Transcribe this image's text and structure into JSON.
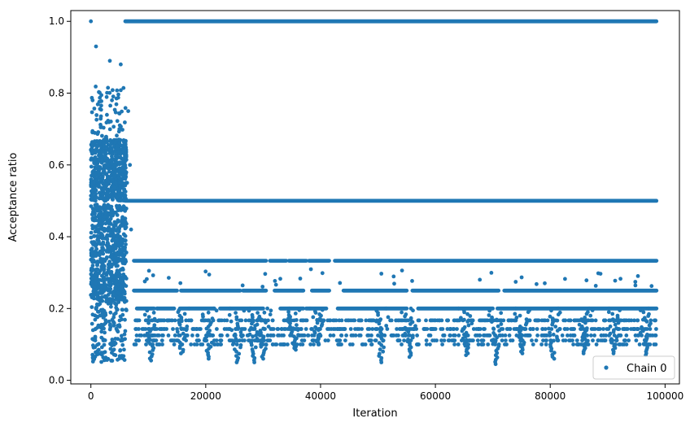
{
  "chart_data": {
    "type": "scatter",
    "title": "",
    "xlabel": "Iteration",
    "ylabel": "Acceptance ratio",
    "xlim": [
      -3500,
      102500
    ],
    "ylim": [
      -0.01,
      1.03
    ],
    "xticks": [
      0,
      20000,
      40000,
      60000,
      80000,
      100000
    ],
    "xtick_labels": [
      "0",
      "20000",
      "40000",
      "60000",
      "80000",
      "100000"
    ],
    "yticks": [
      0.0,
      0.2,
      0.4,
      0.6,
      0.8,
      1.0
    ],
    "ytick_labels": [
      "0.0",
      "0.2",
      "0.4",
      "0.6",
      "0.8",
      "1.0"
    ],
    "grid": false,
    "legend_position": "lower-right",
    "color": "#1f77b4",
    "series": [
      {
        "name": "Chain 0",
        "burn_in": {
          "x_range": [
            0,
            6200
          ],
          "y_range": [
            0.04,
            0.84
          ],
          "note_points": [
            [
              0,
              1.0
            ],
            [
              900,
              0.93
            ],
            [
              3300,
              0.89
            ],
            [
              5200,
              0.88
            ]
          ]
        },
        "levels": [
          1.0,
          0.5,
          0.333,
          0.25,
          0.2,
          0.167,
          0.143,
          0.125,
          0.111,
          0.1
        ],
        "level_ranges": [
          {
            "y": 1.0,
            "segments": [
              [
                6000,
                98500
              ]
            ]
          },
          {
            "y": 0.5,
            "segments": [
              [
                6000,
                98500
              ]
            ]
          },
          {
            "y": 0.333,
            "segments": [
              [
                7500,
                30500
              ],
              [
                31200,
                34000
              ],
              [
                34500,
                37500
              ],
              [
                38000,
                41500
              ],
              [
                42500,
                98500
              ]
            ]
          },
          {
            "y": 0.25,
            "segments": [
              [
                7500,
                15000
              ],
              [
                15700,
                26000
              ],
              [
                26500,
                30500
              ],
              [
                32000,
                37000
              ],
              [
                38500,
                41500
              ],
              [
                44000,
                55000
              ],
              [
                56000,
                71000
              ],
              [
                72000,
                98500
              ]
            ]
          },
          {
            "y": 0.2,
            "segments": [
              [
                8000,
                11000
              ],
              [
                11500,
                14500
              ],
              [
                15500,
                21500
              ],
              [
                22500,
                30000
              ],
              [
                33000,
                37000
              ],
              [
                37500,
                41000
              ],
              [
                43000,
                55000
              ],
              [
                57000,
                70000
              ],
              [
                71000,
                98500
              ]
            ]
          }
        ],
        "dips": [
          {
            "x": 10500,
            "min_y": 0.055
          },
          {
            "x": 15800,
            "min_y": 0.075
          },
          {
            "x": 20500,
            "min_y": 0.06
          },
          {
            "x": 25500,
            "min_y": 0.05
          },
          {
            "x": 28500,
            "min_y": 0.05
          },
          {
            "x": 30000,
            "min_y": 0.06
          },
          {
            "x": 35500,
            "min_y": 0.085
          },
          {
            "x": 39500,
            "min_y": 0.1
          },
          {
            "x": 50500,
            "min_y": 0.05
          },
          {
            "x": 55500,
            "min_y": 0.065
          },
          {
            "x": 65500,
            "min_y": 0.07
          },
          {
            "x": 70500,
            "min_y": 0.045
          },
          {
            "x": 75000,
            "min_y": 0.075
          },
          {
            "x": 80500,
            "min_y": 0.06
          },
          {
            "x": 86000,
            "min_y": 0.075
          },
          {
            "x": 91000,
            "min_y": 0.075
          },
          {
            "x": 96500,
            "min_y": 0.07
          }
        ]
      }
    ]
  }
}
